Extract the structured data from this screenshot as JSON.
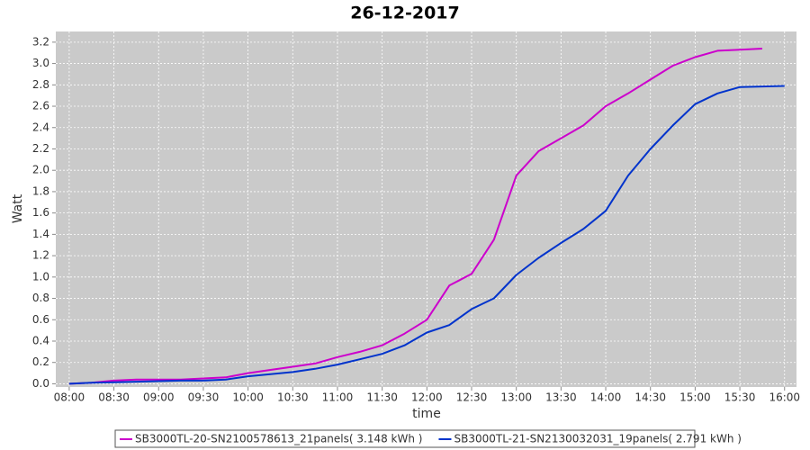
{
  "chart_data": {
    "type": "line",
    "title": "26-12-2017",
    "x_label": "time",
    "y_label": "Watt",
    "x": [
      "08:00",
      "08:15",
      "08:30",
      "08:45",
      "09:00",
      "09:15",
      "09:30",
      "09:45",
      "10:00",
      "10:15",
      "10:30",
      "10:45",
      "11:00",
      "11:15",
      "11:30",
      "11:45",
      "12:00",
      "12:15",
      "12:30",
      "12:45",
      "13:00",
      "13:15",
      "13:30",
      "13:45",
      "14:00",
      "14:15",
      "14:30",
      "14:45",
      "15:00",
      "15:15",
      "15:30",
      "15:45",
      "16:00"
    ],
    "series": [
      {
        "name": "SB3000TL-20-SN2100578613_21panels( 3.148 kWh )",
        "color": "#cc00cc",
        "values": [
          0,
          0.01,
          0.03,
          0.04,
          0.04,
          0.04,
          0.05,
          0.06,
          0.1,
          0.13,
          0.16,
          0.19,
          0.25,
          0.3,
          0.36,
          0.47,
          0.6,
          0.92,
          1.03,
          1.35,
          1.95,
          2.18,
          2.3,
          2.42,
          2.6,
          2.72,
          2.85,
          2.98,
          3.06,
          3.12,
          3.13,
          3.14,
          null
        ]
      },
      {
        "name": "SB3000TL-21-SN2130032031_19panels( 2.791 kWh )",
        "color": "#0033cc",
        "values": [
          0,
          0.01,
          0.015,
          0.02,
          0.025,
          0.03,
          0.03,
          0.04,
          0.07,
          0.09,
          0.11,
          0.14,
          0.18,
          0.23,
          0.28,
          0.36,
          0.48,
          0.55,
          0.7,
          0.8,
          1.02,
          1.18,
          1.32,
          1.45,
          1.62,
          1.95,
          2.2,
          2.42,
          2.62,
          2.72,
          2.78,
          2.785,
          2.79
        ]
      }
    ],
    "xlim": [
      "07:51",
      "16:08"
    ],
    "xticks": [
      "08:00",
      "08:30",
      "09:00",
      "09:30",
      "10:00",
      "10:30",
      "11:00",
      "11:30",
      "12:00",
      "12:30",
      "13:00",
      "13:30",
      "14:00",
      "14:30",
      "15:00",
      "15:30",
      "16:00"
    ],
    "ylim": [
      -0.03,
      3.3
    ],
    "yticks": [
      {
        "value": 0,
        "label": "0.0"
      },
      0.2,
      0.4,
      0.6,
      0.8,
      {
        "value": 1,
        "label": "1.0"
      },
      1.2,
      1.4,
      1.6,
      1.8,
      {
        "value": 2,
        "label": "2.0"
      },
      2.2,
      2.4,
      2.6,
      2.8,
      {
        "value": 3,
        "label": "3.0"
      },
      3.2
    ],
    "grid": true
  }
}
